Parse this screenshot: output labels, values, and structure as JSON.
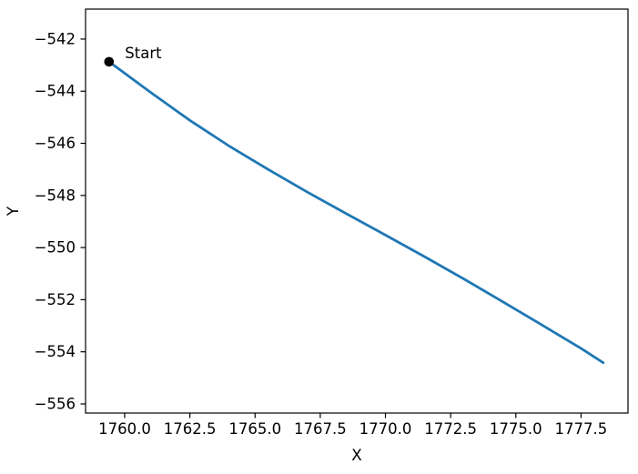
{
  "figure": {
    "background": "#ffffff",
    "spine_color": "#000000",
    "tick_color": "#000000"
  },
  "chart_data": {
    "type": "line",
    "title": "",
    "xlabel": "X",
    "ylabel": "Y",
    "grid": false,
    "legend": null,
    "xlim": [
      1758.5,
      1779.3
    ],
    "ylim": [
      -556.35,
      -540.85
    ],
    "x_tick_values": [
      1760.0,
      1762.5,
      1765.0,
      1767.5,
      1770.0,
      1772.5,
      1775.0,
      1777.5
    ],
    "x_tick_labels": [
      "1760.0",
      "1762.5",
      "1765.0",
      "1767.5",
      "1770.0",
      "1772.5",
      "1775.0",
      "1777.5"
    ],
    "y_tick_values": [
      -542,
      -544,
      -546,
      -548,
      -550,
      -552,
      -554,
      -556
    ],
    "y_tick_labels": [
      "−542",
      "−544",
      "−546",
      "−548",
      "−550",
      "−552",
      "−554",
      "−556"
    ],
    "series": [
      {
        "name": "trajectory",
        "color": "#1f77b4",
        "x": [
          1759.4,
          1761.0,
          1762.5,
          1764.0,
          1765.5,
          1767.0,
          1768.5,
          1770.0,
          1771.5,
          1773.0,
          1774.5,
          1776.0,
          1777.5,
          1778.35
        ],
        "y": [
          -542.87,
          -544.05,
          -545.12,
          -546.1,
          -547.0,
          -547.87,
          -548.7,
          -549.52,
          -550.35,
          -551.2,
          -552.08,
          -552.97,
          -553.87,
          -554.42
        ]
      }
    ],
    "annotation": {
      "text": "Start",
      "x": 1759.4,
      "y": -542.87,
      "marker": "circle",
      "marker_color": "#000000"
    }
  }
}
